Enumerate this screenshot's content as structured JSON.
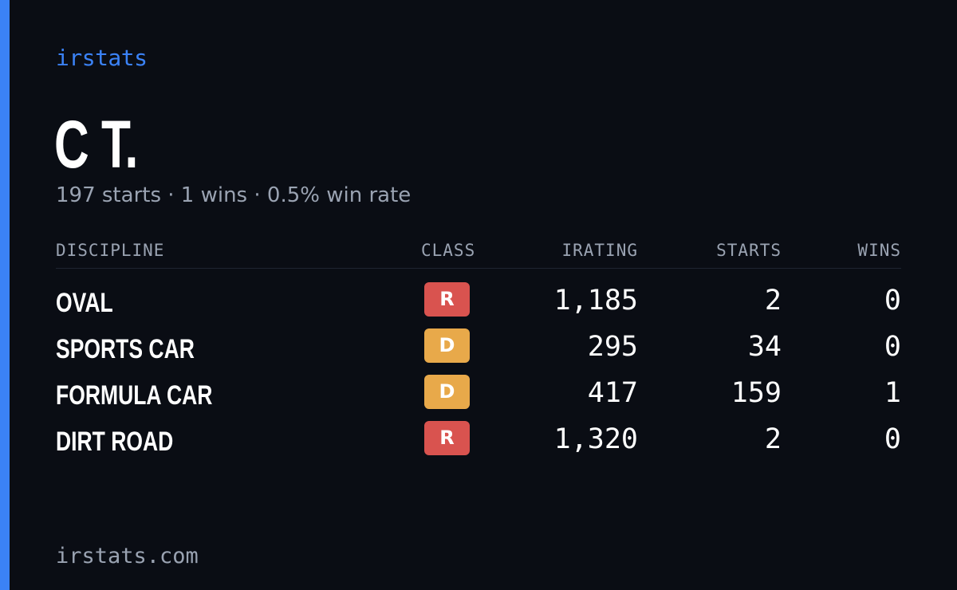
{
  "brand": "irstats",
  "driver": {
    "name": "C T.",
    "summary": "197 starts · 1 wins · 0.5% win rate"
  },
  "table": {
    "headers": {
      "discipline": "DISCIPLINE",
      "class": "CLASS",
      "irating": "IRATING",
      "starts": "STARTS",
      "wins": "WINS"
    },
    "rows": [
      {
        "discipline": "OVAL",
        "class": "R",
        "irating": "1,185",
        "starts": "2",
        "wins": "0"
      },
      {
        "discipline": "SPORTS CAR",
        "class": "D",
        "irating": "295",
        "starts": "34",
        "wins": "0"
      },
      {
        "discipline": "FORMULA CAR",
        "class": "D",
        "irating": "417",
        "starts": "159",
        "wins": "1"
      },
      {
        "discipline": "DIRT ROAD",
        "class": "R",
        "irating": "1,320",
        "starts": "2",
        "wins": "0"
      }
    ]
  },
  "class_colors": {
    "R": "#d9534f",
    "D": "#e8a94a"
  },
  "accent_color": "#3b82f6",
  "footer": "irstats.com"
}
